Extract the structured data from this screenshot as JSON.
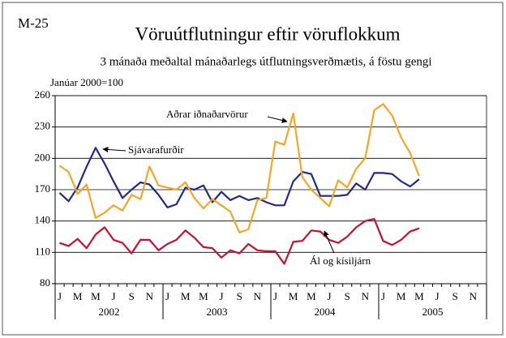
{
  "chart_data": {
    "type": "line",
    "code": "M-25",
    "title": "Vöruútflutningur eftir vöruflokkum",
    "subtitle": "3 mánaða meðaltal mánaðarlegs útflutningsverðmætis, á föstu gengi",
    "y_axis_label": "Janúar 2000=100",
    "categories": [
      "J",
      null,
      "M",
      null,
      "M",
      null,
      "J",
      null,
      "S",
      null,
      "N",
      null,
      "J",
      null,
      "M",
      null,
      "M",
      null,
      "J",
      null,
      "S",
      null,
      "N",
      null,
      "J",
      null,
      "M",
      null,
      "M",
      null,
      "J",
      null,
      "S",
      null,
      "N",
      null,
      "J",
      null,
      "M",
      null,
      "M",
      null,
      "J",
      null,
      "S",
      null,
      "N",
      null
    ],
    "years": [
      "2002",
      "2003",
      "2004",
      "2005"
    ],
    "series": [
      {
        "name": "Sjávarafurðir",
        "color": "#1f2a8c",
        "values": [
          167,
          159,
          172,
          192,
          210,
          195,
          178,
          162,
          170,
          177,
          175,
          165,
          153,
          156,
          172,
          170,
          174,
          158,
          168,
          160,
          164,
          160,
          162,
          158,
          155,
          155,
          178,
          187,
          185,
          164,
          164,
          164,
          165,
          176,
          170,
          186,
          186,
          185,
          178,
          173,
          180,
          null,
          null,
          null,
          null,
          null,
          null,
          null
        ]
      },
      {
        "name": "Aðrar iðnaðarvörur",
        "color": "#f5a623",
        "values": [
          193,
          187,
          166,
          175,
          143,
          148,
          155,
          150,
          165,
          161,
          192,
          174,
          172,
          170,
          177,
          162,
          152,
          161,
          155,
          149,
          129,
          132,
          160,
          162,
          216,
          213,
          243,
          182,
          170,
          162,
          154,
          179,
          172,
          190,
          200,
          246,
          252,
          241,
          220,
          205,
          183,
          null,
          null,
          null,
          null,
          null,
          null,
          null
        ]
      },
      {
        "name": "Ál og kísiljárn",
        "color": "#c8102e",
        "values": [
          119,
          116,
          123,
          114,
          127,
          134,
          122,
          119,
          109,
          122,
          122,
          112,
          118,
          122,
          131,
          124,
          115,
          114,
          105,
          112,
          109,
          118,
          112,
          111,
          111,
          99,
          120,
          121,
          131,
          130,
          122,
          119,
          125,
          134,
          140,
          142,
          121,
          117,
          122,
          130,
          133,
          null,
          null,
          null,
          null,
          null,
          null,
          null
        ]
      }
    ],
    "ylim": [
      80,
      260
    ],
    "yticks": [
      80,
      110,
      140,
      170,
      200,
      230,
      260
    ],
    "grid": true
  }
}
